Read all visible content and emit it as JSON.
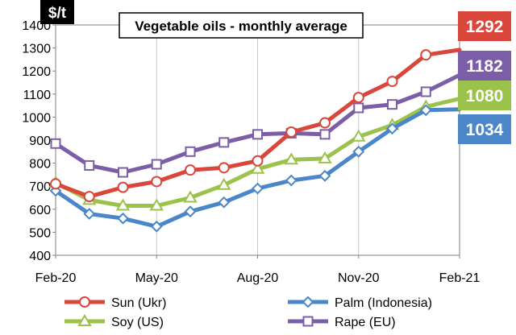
{
  "chart_data": {
    "type": "line",
    "title": "Vegetable oils - monthly average",
    "unit_label": "$/t",
    "xlabel": "",
    "ylabel": "$/t",
    "ylim": [
      400,
      1400
    ],
    "y_ticks": [
      400,
      500,
      600,
      700,
      800,
      900,
      1000,
      1100,
      1200,
      1300,
      1400
    ],
    "x_ticks": [
      {
        "index": 0,
        "label": "Feb-20"
      },
      {
        "index": 3,
        "label": "May-20"
      },
      {
        "index": 6,
        "label": "Aug-20"
      },
      {
        "index": 9,
        "label": "Nov-20"
      },
      {
        "index": 12,
        "label": "Feb-21"
      }
    ],
    "categories": [
      "Feb-20",
      "Mar-20",
      "Apr-20",
      "May-20",
      "Jun-20",
      "Jul-20",
      "Aug-20",
      "Sep-20",
      "Oct-20",
      "Nov-20",
      "Dec-20",
      "Jan-21",
      "Feb-21"
    ],
    "grid": "vertical",
    "legend_position": "bottom",
    "series": [
      {
        "name": "Sun (Ukr)",
        "key": "sun",
        "color": "#d9463b",
        "marker": "circle",
        "values": [
          710,
          655,
          695,
          720,
          770,
          780,
          810,
          935,
          975,
          1085,
          1155,
          1270,
          1292
        ]
      },
      {
        "name": "Palm (Indonesia)",
        "key": "palm",
        "color": "#4a86c8",
        "marker": "diamond",
        "values": [
          680,
          580,
          560,
          525,
          590,
          630,
          690,
          725,
          745,
          850,
          950,
          1030,
          1034
        ]
      },
      {
        "name": "Soy (US)",
        "key": "soy",
        "color": "#9bc24a",
        "marker": "triangle",
        "values": [
          715,
          640,
          615,
          615,
          650,
          705,
          775,
          815,
          820,
          915,
          965,
          1045,
          1080
        ]
      },
      {
        "name": "Rape (EU)",
        "key": "rape",
        "color": "#7b5ea7",
        "marker": "square",
        "values": [
          885,
          790,
          760,
          795,
          850,
          890,
          925,
          930,
          925,
          1040,
          1055,
          1110,
          1182
        ]
      }
    ],
    "end_labels": [
      {
        "series": "sun",
        "text": "1292",
        "color": "#d9463b"
      },
      {
        "series": "rape",
        "text": "1182",
        "color": "#7b5ea7"
      },
      {
        "series": "soy",
        "text": "1080",
        "color": "#9bc24a"
      },
      {
        "series": "palm",
        "text": "1034",
        "color": "#4a86c8"
      }
    ]
  }
}
